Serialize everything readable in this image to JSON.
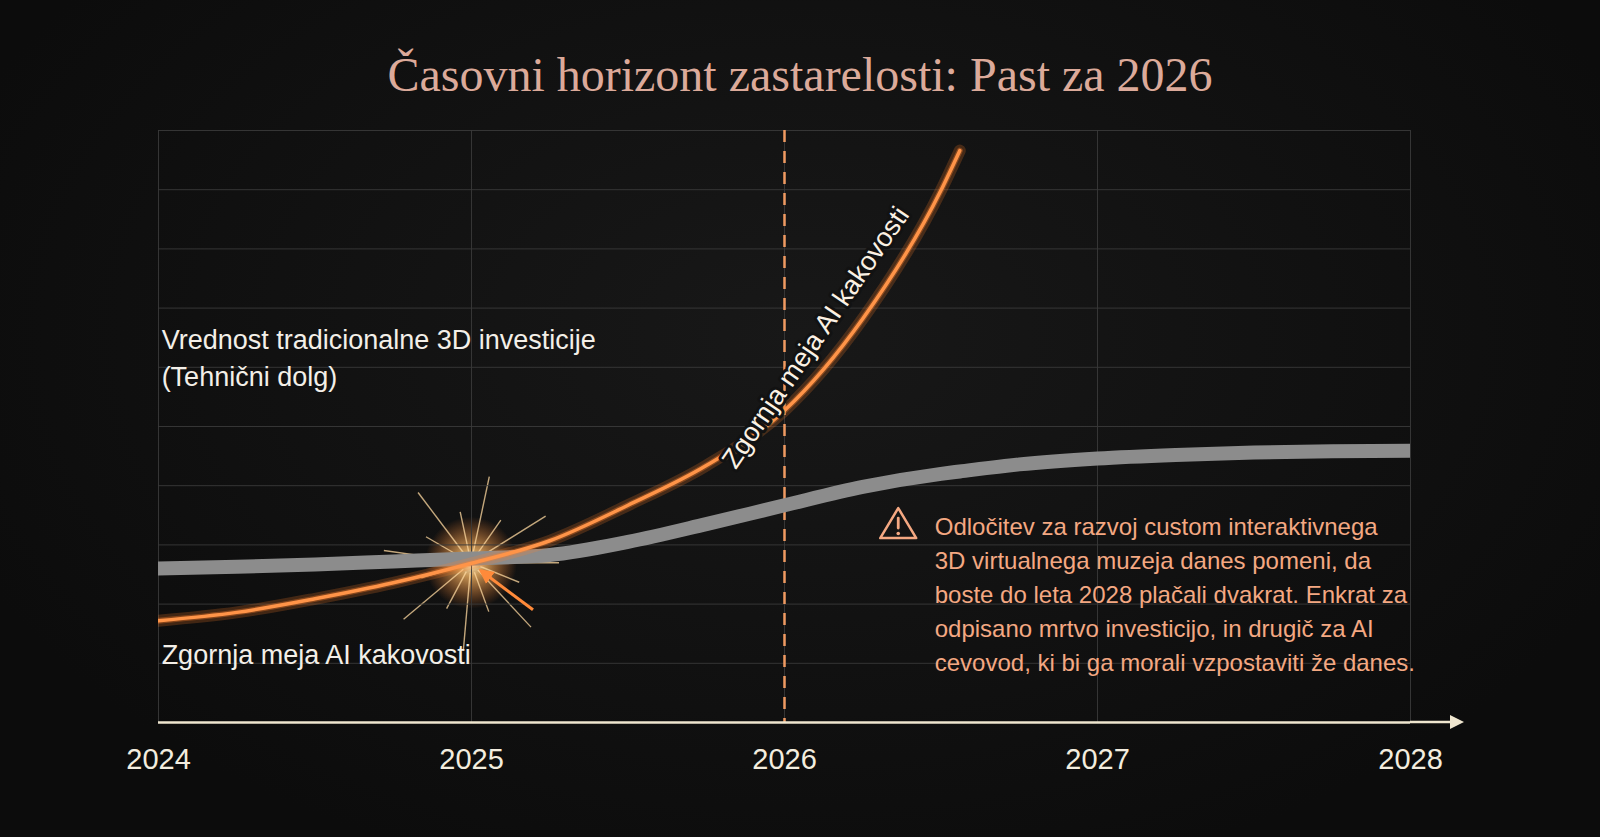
{
  "chart_data": {
    "type": "line",
    "title": "Časovni horizont zastarelosti: Past za 2026",
    "x": [
      2024,
      2024.25,
      2024.5,
      2024.75,
      2025,
      2025.25,
      2025.5,
      2025.75,
      2026,
      2026.25,
      2026.5,
      2026.56,
      2026.75,
      2027,
      2027.25,
      2027.5,
      2027.75,
      2028
    ],
    "series": [
      {
        "name": "Vrednost tradicionalne 3D investicije\n(Tehnični dolg)",
        "color": "#8c8c8c",
        "values": [
          26.0,
          26.3,
          26.7,
          27.2,
          27.7,
          28.3,
          30.5,
          33.5,
          36.7,
          39.8,
          42.0,
          42.4,
          43.6,
          44.6,
          45.2,
          45.6,
          45.8,
          45.9
        ]
      },
      {
        "name": "Zgornja meja AI kakovosti",
        "color": "#ff7f2a",
        "values": [
          17.2,
          18.6,
          20.9,
          23.6,
          26.9,
          30.7,
          36.7,
          43.4,
          52.7,
          68.2,
          89.9,
          96.6,
          null,
          null,
          null,
          null,
          null,
          null
        ]
      }
    ],
    "xlim": [
      2024,
      2028
    ],
    "xticks": [
      2024,
      2025,
      2026,
      2027,
      2028
    ],
    "ylim": [
      0,
      100
    ],
    "yticks": [
      0,
      10,
      20,
      30,
      40,
      50,
      60,
      70,
      80,
      90,
      100
    ],
    "grid": true,
    "tick_labels": "x",
    "reference_lines": [
      {
        "x": 2026,
        "line_style": "dashed"
      }
    ],
    "annotations": [
      {
        "type": "series_label",
        "series": "Vrednost tradicionalne 3D investicije\n(Tehnični dolg)",
        "x": 2024.01,
        "y": 62
      },
      {
        "type": "series_label",
        "series": "Zgornja meja AI kakovosti",
        "x": 2024.01,
        "y": 11.8
      },
      {
        "type": "curve_label",
        "series": "Zgornja meja AI kakovosti",
        "x": 2026.1,
        "y": 65
      },
      {
        "type": "arrow",
        "x": 2025,
        "y": 26.9
      },
      {
        "type": "callout",
        "x": 2026.48,
        "y": 35.8,
        "lines": [
          "Odločitev za razvoj custom interaktivnega",
          "3D virtualnega muzeja danes pomeni, da",
          "boste do leta 2028 plačali dvakrat. Enkrat za",
          "odpisano mrtvo investicijo, in drugič za AI",
          "cevovod, ki bi ga morali vzpostaviti že danes."
        ]
      }
    ]
  }
}
